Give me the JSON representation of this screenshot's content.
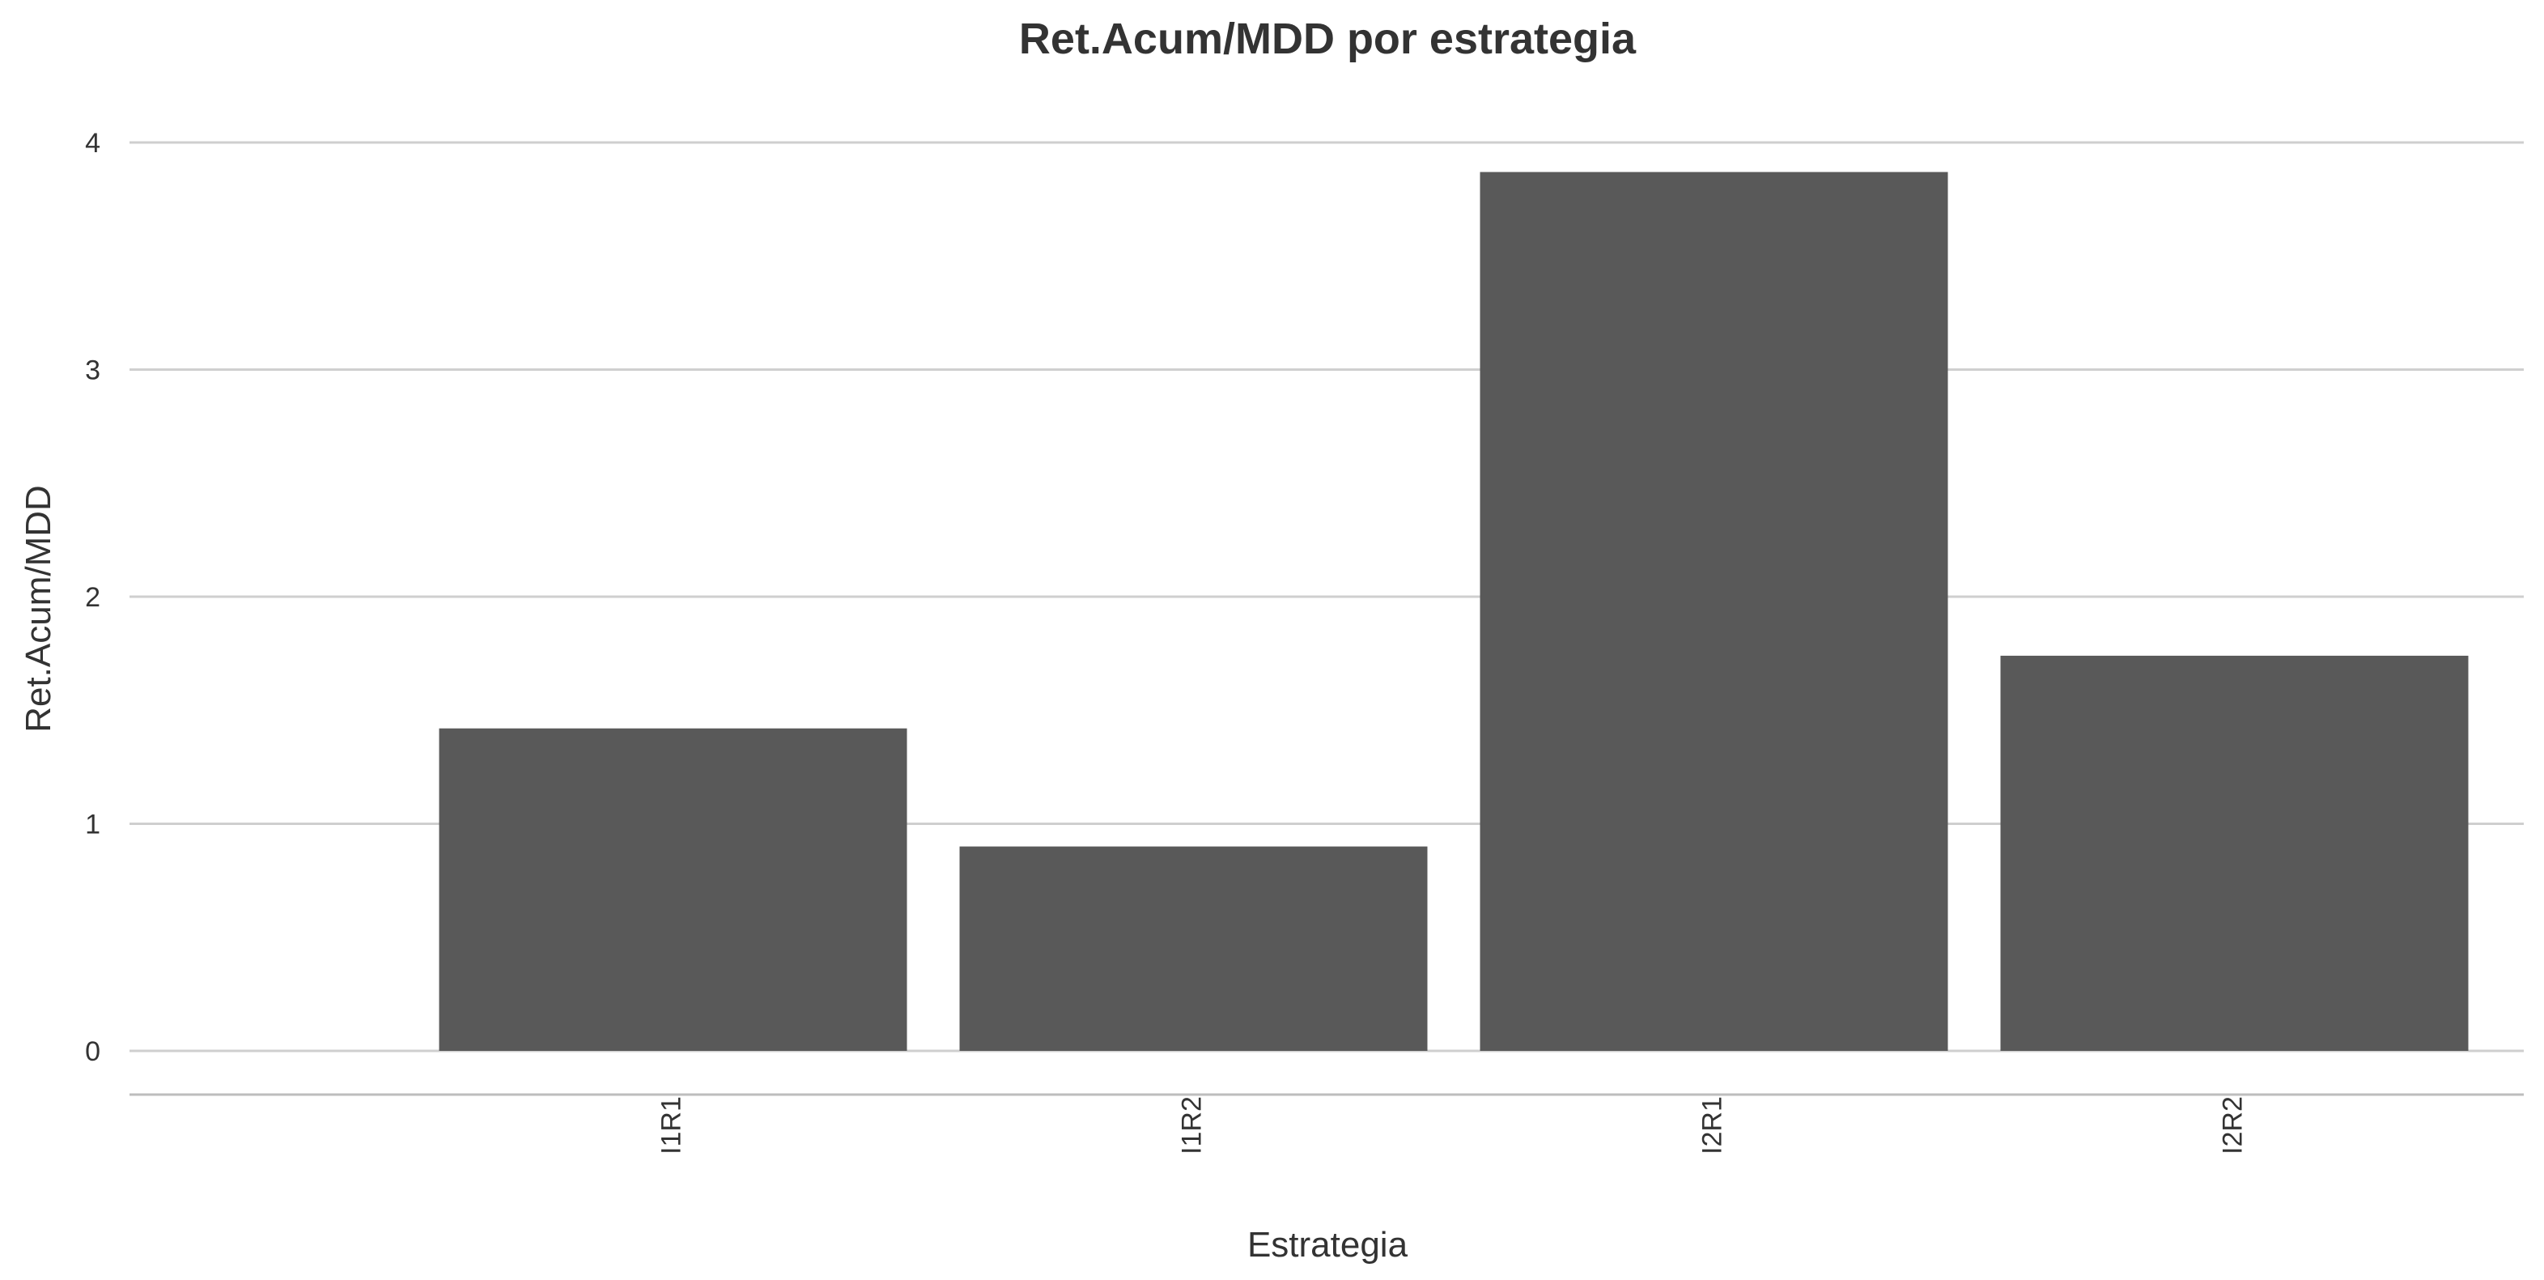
{
  "chart_data": {
    "type": "bar",
    "title": "Ret.Acum/MDD por estrategia",
    "xlabel": "Estrategia",
    "ylabel": "Ret.Acum/MDD",
    "categories": [
      "I1R1",
      "I1R2",
      "I2R1",
      "I2R2"
    ],
    "values": [
      1.42,
      0.9,
      3.87,
      1.74
    ],
    "ylim": [
      0,
      4
    ],
    "yticks": [
      "0",
      "1",
      "2",
      "3",
      "4"
    ],
    "bar_color": "#595959",
    "grid": true,
    "legend": "none"
  }
}
